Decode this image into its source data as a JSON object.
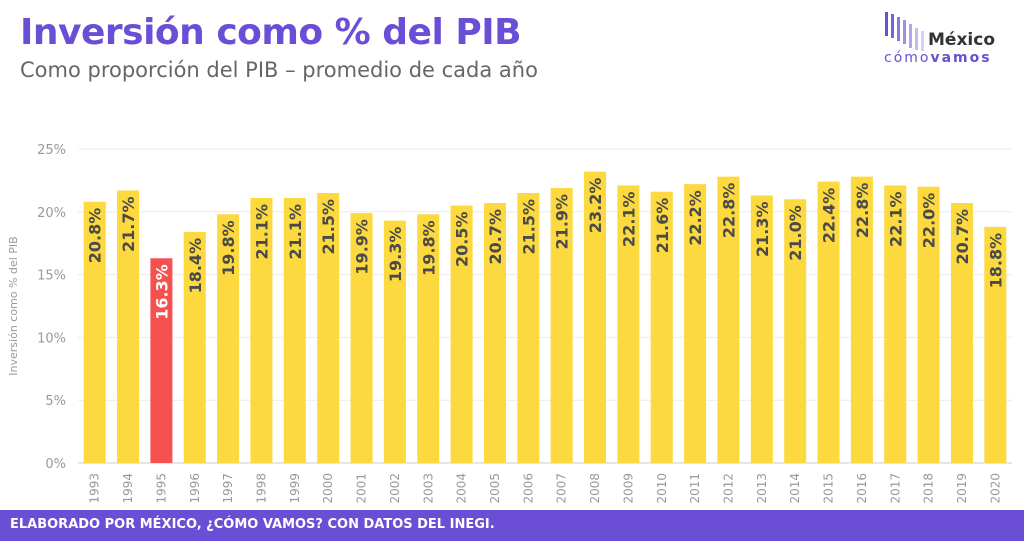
{
  "header": {
    "title": "Inversión como % del PIB",
    "subtitle": "Como proporción del PIB – promedio de cada año"
  },
  "logo": {
    "word": "México",
    "sub_light": "cómo",
    "sub_bold": "vamos",
    "icon": "bars-logo-icon"
  },
  "footer": {
    "text": "ELABORADO POR MÉXICO, ¿CÓMO VAMOS? CON DATOS DEL INEGI."
  },
  "colors": {
    "accent": "#6a4fd6",
    "bar": "#fcd93f",
    "highlight": "#f55151"
  },
  "chart_data": {
    "type": "bar",
    "title": "Inversión como % del PIB",
    "subtitle": "Como proporción del PIB – promedio de cada año",
    "ylabel": "Inversión como % del PIB",
    "xlabel": "",
    "categories": [
      "1993",
      "1994",
      "1995",
      "1996",
      "1997",
      "1998",
      "1999",
      "2000",
      "2001",
      "2002",
      "2003",
      "2004",
      "2005",
      "2006",
      "2007",
      "2008",
      "2009",
      "2010",
      "2011",
      "2012",
      "2013",
      "2014",
      "2015",
      "2016",
      "2017",
      "2018",
      "2019",
      "2020"
    ],
    "values": [
      20.8,
      21.7,
      16.3,
      18.4,
      19.8,
      21.1,
      21.1,
      21.5,
      19.9,
      19.3,
      19.8,
      20.5,
      20.7,
      21.5,
      21.9,
      23.2,
      22.1,
      21.6,
      22.2,
      22.8,
      21.3,
      21.0,
      22.4,
      22.8,
      22.1,
      22.0,
      20.7,
      18.8
    ],
    "data_labels": [
      "20.8%",
      "21.7%",
      "16.3%",
      "18.4%",
      "19.8%",
      "21.1%",
      "21.1%",
      "21.5%",
      "19.9%",
      "19.3%",
      "19.8%",
      "20.5%",
      "20.7%",
      "21.5%",
      "21.9%",
      "23.2%",
      "22.1%",
      "21.6%",
      "22.2%",
      "22.8%",
      "21.3%",
      "21.0%",
      "22.4%",
      "22.8%",
      "22.1%",
      "22.0%",
      "20.7%",
      "18.8%"
    ],
    "highlight_category": "1995",
    "ylim": [
      0,
      25
    ],
    "yticks": [
      "0%",
      "5%",
      "10%",
      "15%",
      "20%",
      "25%"
    ],
    "grid": true,
    "legend": "none"
  }
}
